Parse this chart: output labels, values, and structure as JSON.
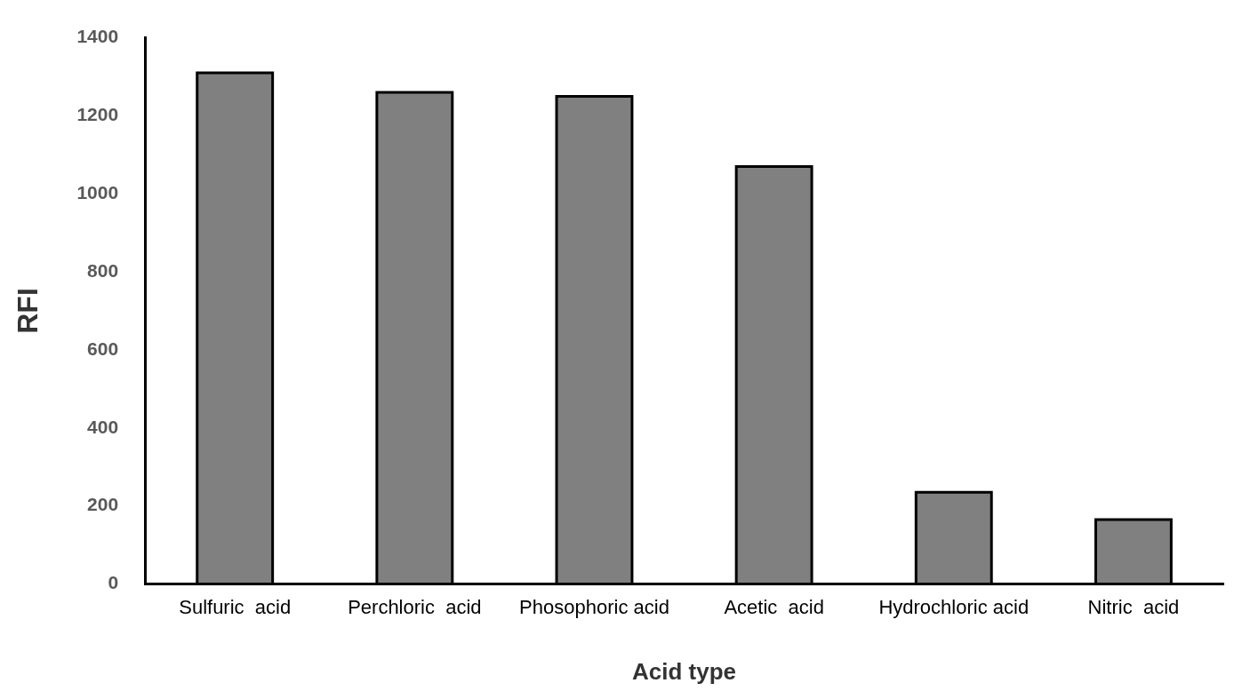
{
  "chart_data": {
    "type": "bar",
    "xlabel": "Acid type",
    "ylabel": "RFI",
    "categories": [
      "Sulfuric  acid",
      "Perchloric  acid",
      "Phosophoric acid",
      "Acetic  acid",
      "Hydrochloric acid",
      "Nitric  acid"
    ],
    "values": [
      1310,
      1260,
      1250,
      1070,
      235,
      165
    ],
    "color": "#808080",
    "ylim": [
      0,
      1400
    ],
    "yticks": [
      0,
      200,
      400,
      600,
      800,
      1000,
      1200,
      1400
    ],
    "grid": false
  }
}
